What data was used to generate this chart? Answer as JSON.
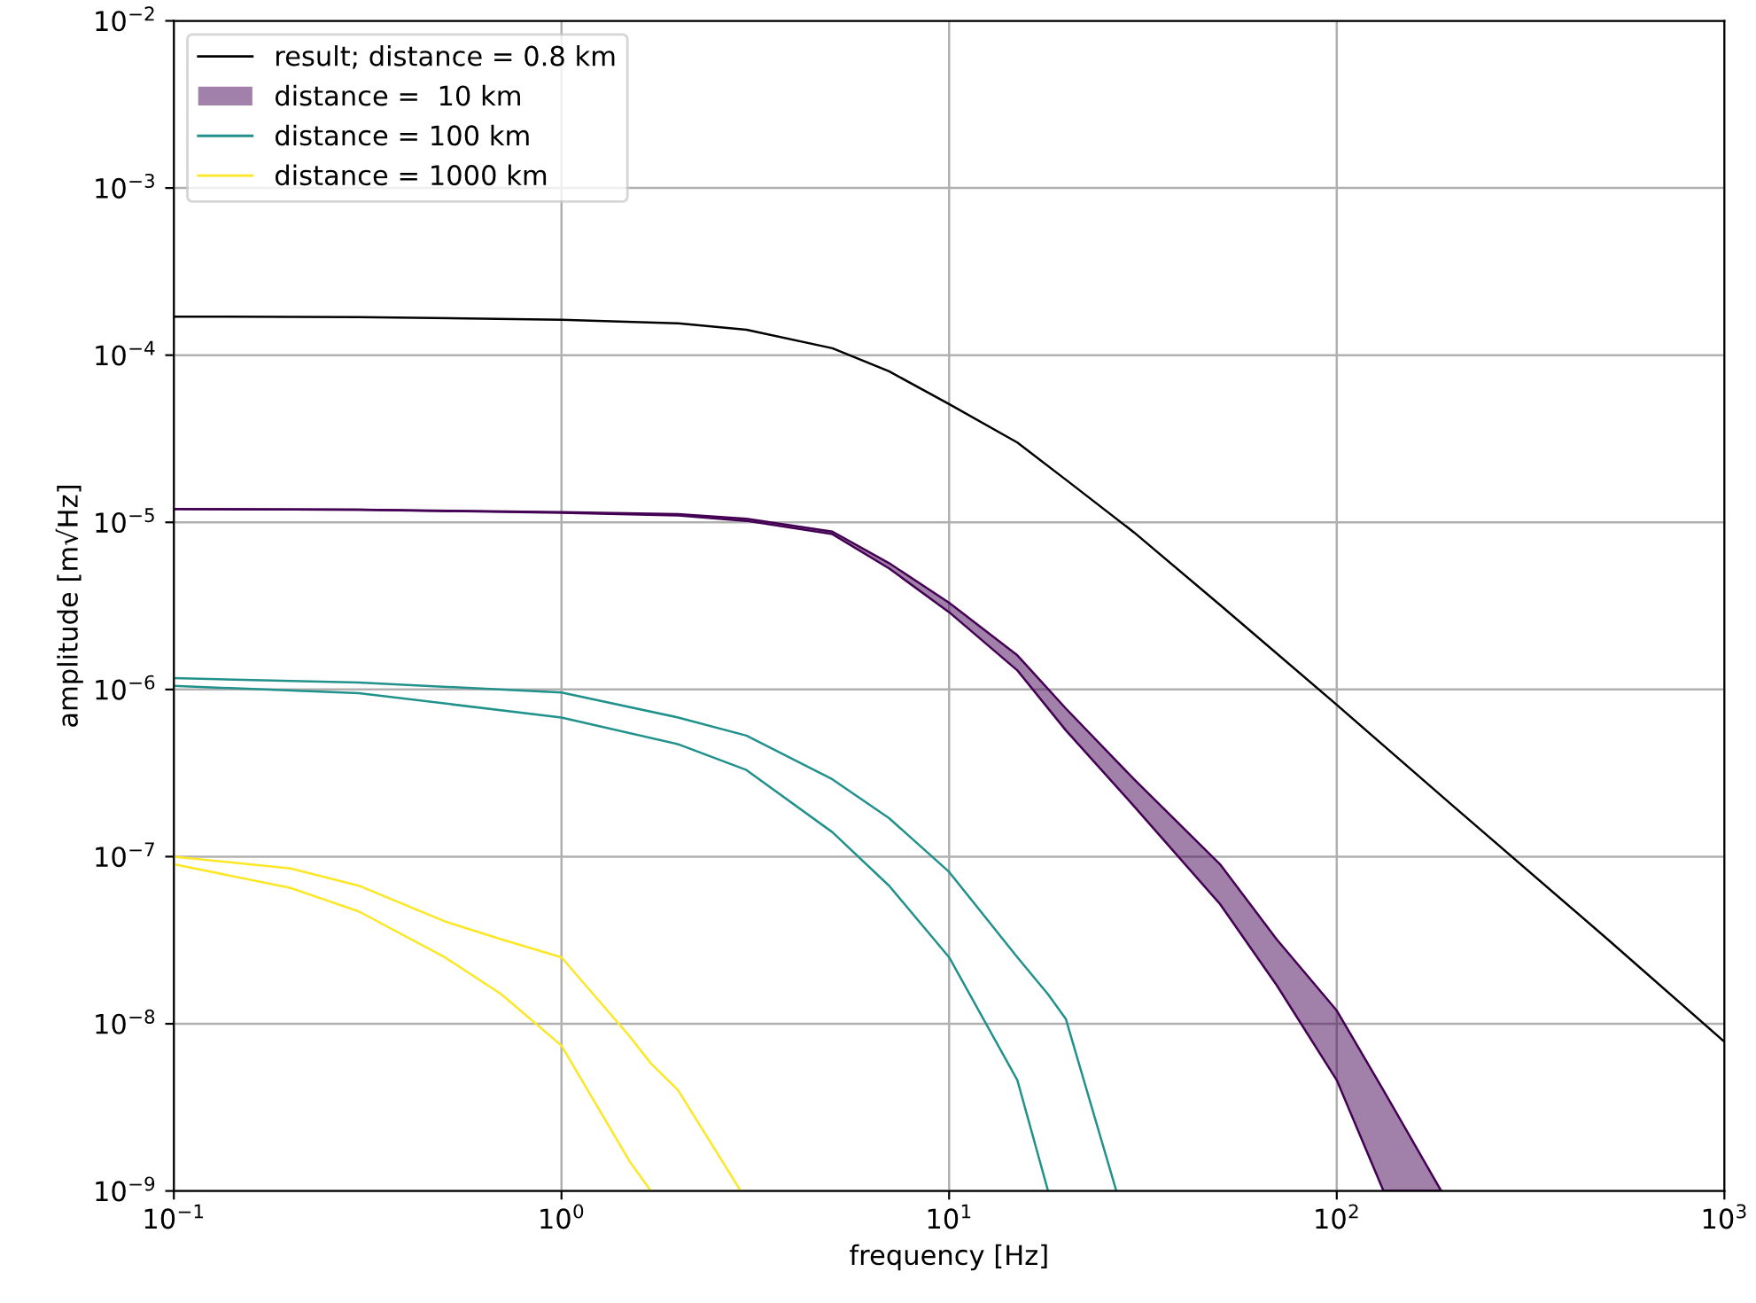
{
  "chart_data": {
    "type": "line",
    "xlabel": "frequency [Hz]",
    "ylabel": "amplitude [m√Hz]",
    "log": "xy",
    "grid": true,
    "legend": "top left",
    "xlim": [
      0.1,
      1000
    ],
    "ylim": [
      1e-09,
      0.01
    ],
    "xticks": [
      {
        "value": 0.1,
        "label": "10$^{−1}$"
      },
      {
        "value": 1,
        "label": "10$^{0}$"
      },
      {
        "value": 10,
        "label": "10$^{1}$"
      },
      {
        "value": 100,
        "label": "10$^{2}$"
      },
      {
        "value": 1000,
        "label": "10$^{3}$"
      }
    ],
    "yticks": [
      {
        "value": 1e-09,
        "label": "10$^{−9}$"
      },
      {
        "value": 1e-08,
        "label": "10$^{−8}$"
      },
      {
        "value": 1e-07,
        "label": "10$^{−7}$"
      },
      {
        "value": 1e-06,
        "label": "10$^{−6}$"
      },
      {
        "value": 1e-05,
        "label": "10$^{−5}$"
      },
      {
        "value": 0.0001,
        "label": "10$^{−4}$"
      },
      {
        "value": 0.001,
        "label": "10$^{−3}$"
      },
      {
        "value": 0.01,
        "label": "10$^{−2}$"
      }
    ],
    "series": [
      {
        "name": "result; distance = 0.8 km",
        "type": "line",
        "color": "#000000",
        "x": [
          0.1,
          0.3,
          1,
          2,
          3,
          5,
          7,
          10,
          15,
          20,
          30,
          50,
          100,
          200,
          500,
          1000
        ],
        "values": [
          0.00017,
          0.000169,
          0.000163,
          0.000155,
          0.000142,
          0.00011,
          8e-05,
          5.1e-05,
          3e-05,
          1.8e-05,
          8.7e-06,
          3.2e-06,
          8.1e-07,
          2e-07,
          3.2e-08,
          7.8e-09
        ]
      },
      {
        "name": "distance =  10 km",
        "type": "line",
        "color": "#440154",
        "x": [
          0.1,
          0.3,
          1,
          2,
          3,
          5,
          7,
          10,
          15,
          20,
          30,
          50,
          70,
          100,
          132,
          186
        ],
        "values": [
          1.2e-05,
          1.19e-05,
          1.15e-05,
          1.12e-05,
          1.05e-05,
          8.8e-06,
          5.7e-06,
          3.3e-06,
          1.6e-06,
          7.7e-07,
          2.9e-07,
          9e-08,
          3.2e-08,
          1.2e-08,
          4e-09,
          1e-09
        ],
        "upper": [
          1.2e-05,
          1.19e-05,
          1.15e-05,
          1.12e-05,
          1.05e-05,
          8.8e-06,
          5.7e-06,
          3.3e-06,
          1.6e-06,
          7.7e-07,
          2.9e-07,
          9e-08,
          3.2e-08,
          1.2e-08,
          4e-09,
          1e-09
        ],
        "lower": [
          1.2e-05,
          1.19e-05,
          1.14e-05,
          1.1e-05,
          1.02e-05,
          8.5e-06,
          5.3e-06,
          2.9e-06,
          1.3e-06,
          5.7e-07,
          2e-07,
          5.2e-08,
          1.7e-08,
          4.6e-09,
          1e-09,
          1e-09
        ]
      },
      {
        "name": "distance = 100 km",
        "type": "line",
        "color": "#21918c",
        "x": [
          0.1,
          0.3,
          1,
          2,
          3,
          5,
          7,
          10,
          15,
          18,
          20,
          27
        ],
        "values": [
          1.17e-06,
          1.1e-06,
          9.6e-07,
          6.8e-07,
          5.3e-07,
          2.9e-07,
          1.7e-07,
          8.1e-08,
          2.5e-08,
          1.5e-08,
          1.07e-08,
          1e-09
        ]
      },
      {
        "color": "#21918c",
        "x": [
          0.1,
          0.3,
          1,
          2,
          3,
          5,
          7,
          10,
          15,
          18
        ],
        "values": [
          1.05e-06,
          9.5e-07,
          6.8e-07,
          4.7e-07,
          3.3e-07,
          1.4e-07,
          6.7e-08,
          2.5e-08,
          4.6e-09,
          1e-09
        ]
      },
      {
        "name": "distance = 1000 km",
        "color": "#fde725",
        "x": [
          0.1,
          0.2,
          0.3,
          0.5,
          0.7,
          1,
          1.5,
          1.7,
          2,
          2.9
        ],
        "values": [
          1e-07,
          8.5e-08,
          6.7e-08,
          4.1e-08,
          3.2e-08,
          2.5e-08,
          8.4e-09,
          5.8e-09,
          4e-09,
          1e-09
        ]
      },
      {
        "color": "#fde725",
        "x": [
          0.1,
          0.2,
          0.3,
          0.5,
          0.7,
          1,
          1.5,
          1.7
        ],
        "values": [
          9e-08,
          6.5e-08,
          4.7e-08,
          2.5e-08,
          1.5e-08,
          7.4e-09,
          1.5e-09,
          1e-09
        ]
      }
    ]
  }
}
